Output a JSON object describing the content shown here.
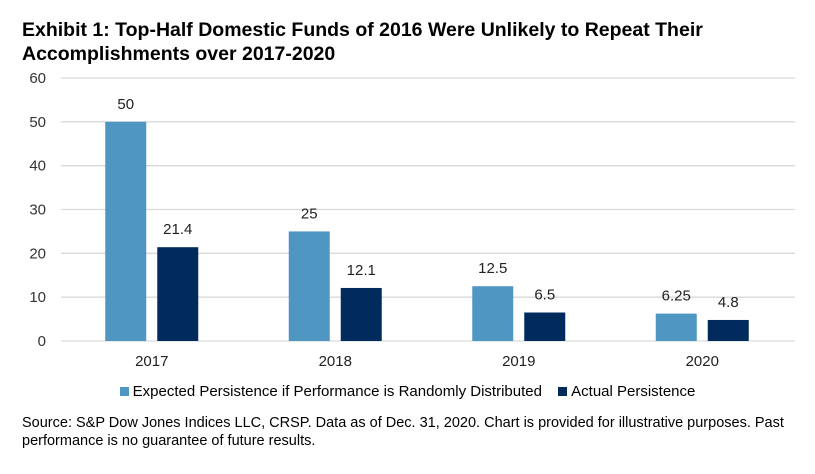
{
  "title": "Exhibit 1: Top-Half Domestic Funds of 2016 Were Unlikely to Repeat Their Accomplishments over 2017-2020",
  "source": "Source: S&P Dow Jones Indices LLC, CRSP.  Data as of Dec. 31, 2020.  Chart is provided for illustrative purposes.  Past performance is no guarantee of future results.",
  "chart_data": {
    "type": "bar",
    "title": "Exhibit 1: Top-Half Domestic Funds of 2016 Were Unlikely to Repeat Their Accomplishments over 2017-2020",
    "categories": [
      "2017",
      "2018",
      "2019",
      "2020"
    ],
    "series": [
      {
        "name": "Expected Persistence if Performance is Randomly Distributed",
        "values": [
          50,
          25,
          12.5,
          6.25
        ],
        "labels": [
          "50",
          "25",
          "12.5",
          "6.25"
        ],
        "color": "#4F97C2"
      },
      {
        "name": "Actual Persistence",
        "values": [
          21.4,
          12.1,
          6.5,
          4.8
        ],
        "labels": [
          "21.4",
          "12.1",
          "6.5",
          "4.8"
        ],
        "color": "#002B5C"
      }
    ],
    "xlabel": "",
    "ylabel": "",
    "ylim": [
      0,
      60
    ],
    "yticks": [
      "0",
      "10",
      "20",
      "30",
      "40",
      "50",
      "60"
    ],
    "grid": true,
    "legend": "bottom"
  }
}
